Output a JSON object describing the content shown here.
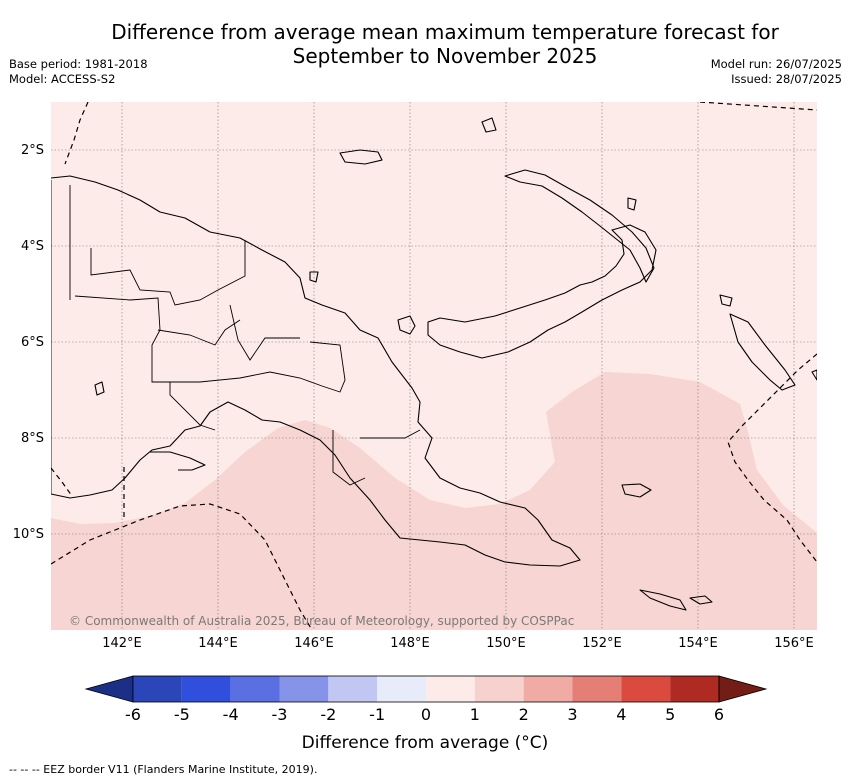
{
  "title_line1": "Difference from average mean maximum temperature forecast for",
  "title_line2": "September to November 2025",
  "meta_left": {
    "base_period": "Base period: 1981-2018",
    "model": "Model: ACCESS-S2"
  },
  "meta_right": {
    "model_run": "Model run: 26/07/2025",
    "issued": "Issued: 28/07/2025"
  },
  "lat_labels": [
    "2°S",
    "4°S",
    "6°S",
    "8°S",
    "10°S"
  ],
  "lon_labels": [
    "142°E",
    "144°E",
    "146°E",
    "148°E",
    "150°E",
    "152°E",
    "154°E",
    "156°E"
  ],
  "copyright": "© Commonwealth of Australia 2025, Bureau of Meteorology, supported by COSPPac",
  "colorbar": {
    "ticks": [
      "-6",
      "-5",
      "-4",
      "-3",
      "-2",
      "-1",
      "0",
      "1",
      "2",
      "3",
      "4",
      "5",
      "6"
    ],
    "colors": [
      "#1b2f86",
      "#2a46b8",
      "#2f4fdc",
      "#5a70e2",
      "#8594e8",
      "#c1c7f2",
      "#e8ebfa",
      "#fcebe8",
      "#f6d1cd",
      "#efaba4",
      "#e57e74",
      "#db4a3e",
      "#ae2a22",
      "#741d17"
    ],
    "title": "Difference from average (°C)"
  },
  "regions": {
    "base_fill": "#fcebe8",
    "warmer_fill": "#f6d5d2"
  },
  "footnote": "--  --  -- EEZ border V11 (Flanders Marine Institute, 2019)."
}
